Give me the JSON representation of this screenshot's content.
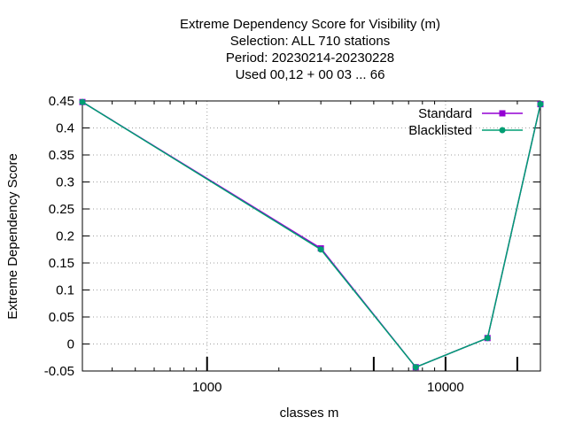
{
  "chart_data": {
    "type": "line",
    "title_lines": [
      "Extreme Dependency Score  for Visibility (m)",
      "Selection: ALL    710 stations",
      "Period: 20230214-20230228",
      "Used  00,12  + 00 03 ... 66"
    ],
    "xlabel": "classes m",
    "ylabel": "Extreme Dependency Score",
    "x_scale": "log",
    "xlim": [
      300,
      25000
    ],
    "ylim": [
      -0.05,
      0.45
    ],
    "x_ticks": [
      1000,
      10000
    ],
    "x_tick_labels": [
      "1000",
      "10000"
    ],
    "y_ticks": [
      -0.05,
      0,
      0.05,
      0.1,
      0.15,
      0.2,
      0.25,
      0.3,
      0.35,
      0.4,
      0.45
    ],
    "y_tick_labels": [
      "-0.05",
      "0",
      "0.05",
      "0.1",
      "0.15",
      "0.2",
      "0.25",
      "0.3",
      "0.35",
      "0.4",
      "0.45"
    ],
    "x_class_marks": [
      1000,
      5000,
      10000,
      20000
    ],
    "grid": true,
    "legend_position": "top-right",
    "series": [
      {
        "name": "Standard",
        "color": "#9400d3",
        "marker": "square",
        "x": [
          300,
          3000,
          7500,
          15000,
          25000
        ],
        "y": [
          0.448,
          0.177,
          -0.043,
          0.011,
          0.444
        ]
      },
      {
        "name": "Blacklisted",
        "color": "#009e73",
        "marker": "circle",
        "x": [
          300,
          3000,
          7500,
          15000,
          25000
        ],
        "y": [
          0.448,
          0.175,
          -0.043,
          0.011,
          0.444
        ]
      }
    ]
  }
}
